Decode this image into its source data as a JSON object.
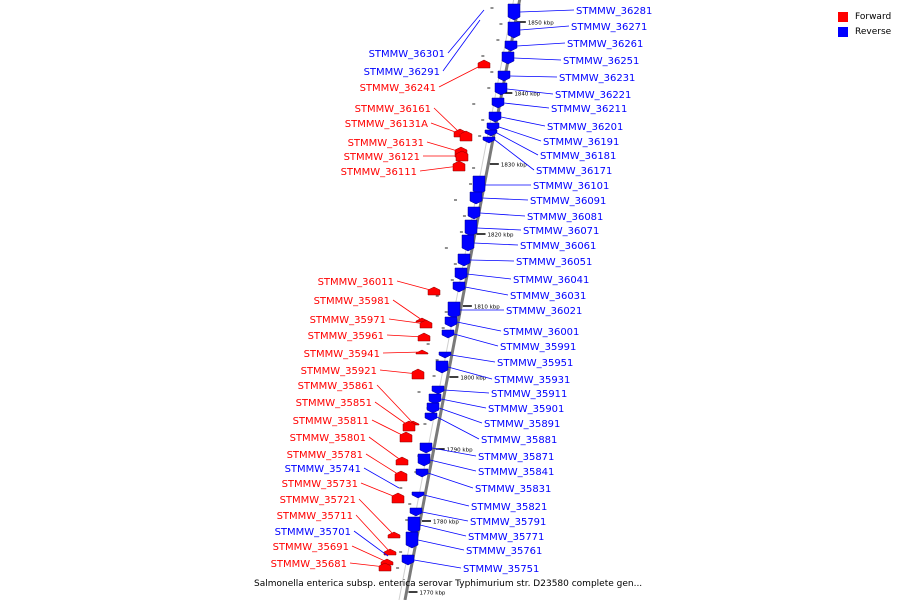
{
  "legend": {
    "forward_label": "Forward",
    "reverse_label": "Reverse",
    "forward_color": "#ff0000",
    "reverse_color": "#0000ff"
  },
  "caption": "Salmonella enterica subsp. enterica serovar Typhimurium str. D23580 complete gen...",
  "kbp_ticks": [
    "1850 kbp",
    "1840 kbp",
    "1830 kbp",
    "1820 kbp",
    "1810 kbp",
    "1800 kbp",
    "1790 kbp",
    "1780 kbp",
    "1770 kbp"
  ],
  "genes": [
    {
      "name": "STMMW_36281",
      "strand": "reverse"
    },
    {
      "name": "STMMW_36271",
      "strand": "reverse"
    },
    {
      "name": "STMMW_36261",
      "strand": "reverse"
    },
    {
      "name": "STMMW_36251",
      "strand": "reverse"
    },
    {
      "name": "STMMW_36231",
      "strand": "reverse"
    },
    {
      "name": "STMMW_36221",
      "strand": "reverse"
    },
    {
      "name": "STMMW_36211",
      "strand": "reverse"
    },
    {
      "name": "STMMW_36201",
      "strand": "reverse"
    },
    {
      "name": "STMMW_36191",
      "strand": "reverse"
    },
    {
      "name": "STMMW_36181",
      "strand": "reverse"
    },
    {
      "name": "STMMW_36171",
      "strand": "reverse"
    },
    {
      "name": "STMMW_36101",
      "strand": "reverse"
    },
    {
      "name": "STMMW_36091",
      "strand": "reverse"
    },
    {
      "name": "STMMW_36081",
      "strand": "reverse"
    },
    {
      "name": "STMMW_36071",
      "strand": "reverse"
    },
    {
      "name": "STMMW_36061",
      "strand": "reverse"
    },
    {
      "name": "STMMW_36051",
      "strand": "reverse"
    },
    {
      "name": "STMMW_36041",
      "strand": "reverse"
    },
    {
      "name": "STMMW_36031",
      "strand": "reverse"
    },
    {
      "name": "STMMW_36021",
      "strand": "reverse"
    },
    {
      "name": "STMMW_36001",
      "strand": "reverse"
    },
    {
      "name": "STMMW_35991",
      "strand": "reverse"
    },
    {
      "name": "STMMW_35951",
      "strand": "reverse"
    },
    {
      "name": "STMMW_35931",
      "strand": "reverse"
    },
    {
      "name": "STMMW_35911",
      "strand": "reverse"
    },
    {
      "name": "STMMW_35901",
      "strand": "reverse"
    },
    {
      "name": "STMMW_35891",
      "strand": "reverse"
    },
    {
      "name": "STMMW_35881",
      "strand": "reverse"
    },
    {
      "name": "STMMW_35871",
      "strand": "reverse"
    },
    {
      "name": "STMMW_35841",
      "strand": "reverse"
    },
    {
      "name": "STMMW_35831",
      "strand": "reverse"
    },
    {
      "name": "STMMW_35821",
      "strand": "reverse"
    },
    {
      "name": "STMMW_35791",
      "strand": "reverse"
    },
    {
      "name": "STMMW_35771",
      "strand": "reverse"
    },
    {
      "name": "STMMW_35761",
      "strand": "reverse"
    },
    {
      "name": "STMMW_35751",
      "strand": "reverse"
    },
    {
      "name": "STMMW_36301",
      "strand": "reverse"
    },
    {
      "name": "STMMW_36291",
      "strand": "reverse"
    },
    {
      "name": "STMMW_36241",
      "strand": "forward"
    },
    {
      "name": "STMMW_36161",
      "strand": "forward"
    },
    {
      "name": "STMMW_36131A",
      "strand": "forward"
    },
    {
      "name": "STMMW_36131",
      "strand": "forward"
    },
    {
      "name": "STMMW_36121",
      "strand": "forward"
    },
    {
      "name": "STMMW_36111",
      "strand": "forward"
    },
    {
      "name": "STMMW_36011",
      "strand": "forward"
    },
    {
      "name": "STMMW_35981",
      "strand": "forward"
    },
    {
      "name": "STMMW_35971",
      "strand": "forward"
    },
    {
      "name": "STMMW_35961",
      "strand": "forward"
    },
    {
      "name": "STMMW_35941",
      "strand": "forward"
    },
    {
      "name": "STMMW_35921",
      "strand": "forward"
    },
    {
      "name": "STMMW_35861",
      "strand": "forward"
    },
    {
      "name": "STMMW_35851",
      "strand": "forward"
    },
    {
      "name": "STMMW_35811",
      "strand": "forward"
    },
    {
      "name": "STMMW_35801",
      "strand": "forward"
    },
    {
      "name": "STMMW_35781",
      "strand": "forward"
    },
    {
      "name": "STMMW_35741",
      "strand": "reverse"
    },
    {
      "name": "STMMW_35731",
      "strand": "forward"
    },
    {
      "name": "STMMW_35721",
      "strand": "forward"
    },
    {
      "name": "STMMW_35711",
      "strand": "forward"
    },
    {
      "name": "STMMW_35701",
      "strand": "reverse"
    },
    {
      "name": "STMMW_35691",
      "strand": "forward"
    },
    {
      "name": "STMMW_35681",
      "strand": "forward"
    }
  ]
}
